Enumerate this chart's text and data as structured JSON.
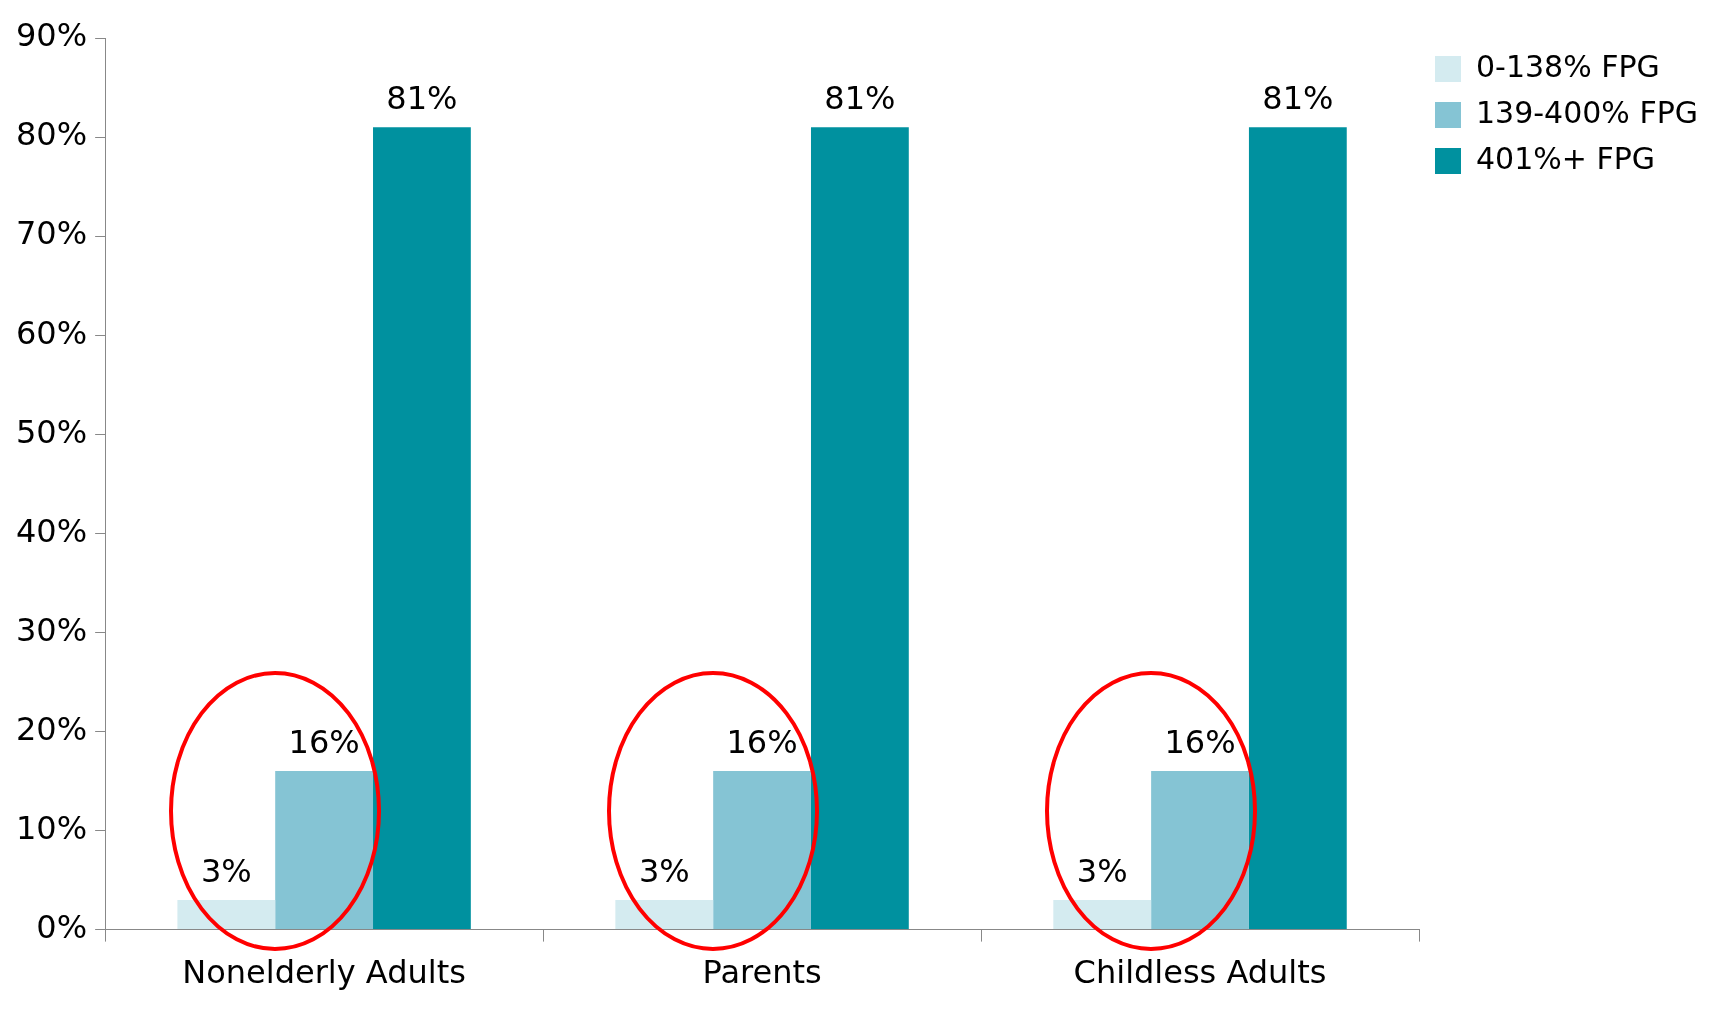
{
  "chart_data": {
    "type": "bar",
    "categories": [
      "Nonelderly Adults",
      "Parents",
      "Childless Adults"
    ],
    "series": [
      {
        "name": "0-138% FPG",
        "color": "#d4ebf0",
        "values": [
          3,
          3,
          3
        ],
        "value_labels": [
          "3%",
          "3%",
          "3%"
        ]
      },
      {
        "name": "139-400% FPG",
        "color": "#85c4d4",
        "values": [
          16,
          16,
          16
        ],
        "value_labels": [
          "16%",
          "16%",
          "16%"
        ]
      },
      {
        "name": "401%+ FPG",
        "color": "#00919f",
        "values": [
          81,
          81,
          81
        ],
        "value_labels": [
          "81%",
          "81%",
          "81%"
        ]
      }
    ],
    "ylim": [
      0,
      90
    ],
    "yticks": [
      {
        "value": 0,
        "label": "0%"
      },
      {
        "value": 10,
        "label": "10%"
      },
      {
        "value": 20,
        "label": "20%"
      },
      {
        "value": 30,
        "label": "30%"
      },
      {
        "value": 40,
        "label": "40%"
      },
      {
        "value": 50,
        "label": "50%"
      },
      {
        "value": 60,
        "label": "60%"
      },
      {
        "value": 70,
        "label": "70%"
      },
      {
        "value": 80,
        "label": "80%"
      },
      {
        "value": 90,
        "label": "90%"
      }
    ],
    "grid": false,
    "legend": "top right"
  }
}
